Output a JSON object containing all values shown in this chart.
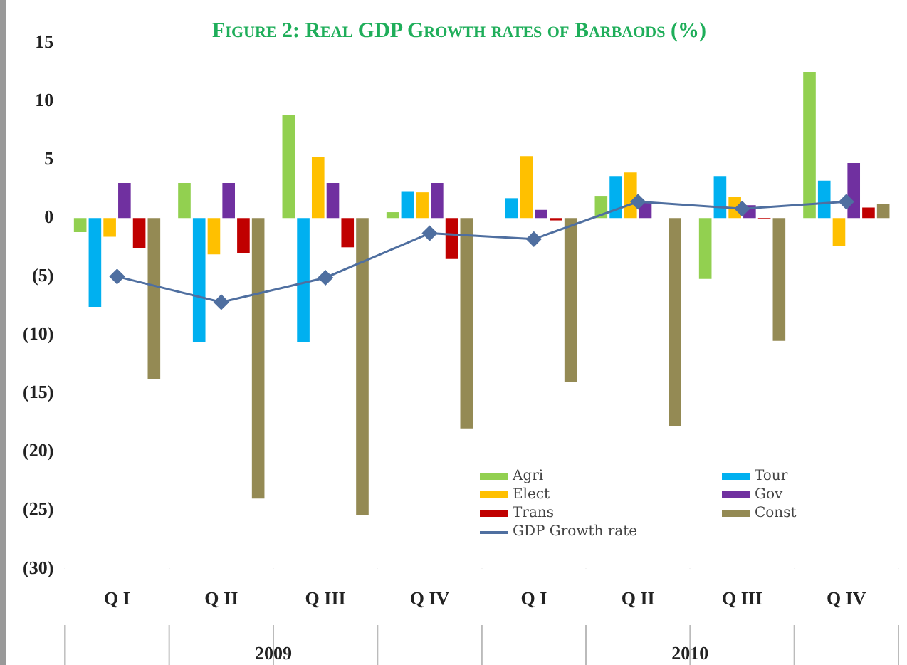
{
  "chart_data": {
    "type": "bar",
    "title": "Figure 2: Real GDP Growth rates of Barbaods (%)",
    "categories": [
      "Q I",
      "Q II",
      "Q III",
      "Q IV",
      "Q I",
      "Q II",
      "Q III",
      "Q IV"
    ],
    "series": [
      {
        "name": "Agri",
        "color": "#92d050",
        "values": [
          -1.2,
          3.0,
          8.8,
          0.5,
          0,
          1.9,
          -5.2,
          12.5
        ]
      },
      {
        "name": "Tour",
        "color": "#00b0f0",
        "values": [
          -7.6,
          -10.6,
          -10.6,
          2.3,
          1.7,
          3.6,
          3.6,
          3.2
        ]
      },
      {
        "name": "Elect",
        "color": "#ffc000",
        "values": [
          -1.6,
          -3.1,
          5.2,
          2.2,
          5.3,
          3.9,
          1.8,
          -2.4
        ]
      },
      {
        "name": "Gov",
        "color": "#7030a0",
        "values": [
          3.0,
          3.0,
          3.0,
          3.0,
          0.7,
          1.3,
          1.1,
          4.7
        ]
      },
      {
        "name": "Trans",
        "color": "#c00000",
        "values": [
          -2.6,
          -3.0,
          -2.5,
          -3.5,
          -0.2,
          0,
          -0.1,
          0.9
        ]
      },
      {
        "name": "Const",
        "color": "#948a54",
        "values": [
          -13.8,
          -24.0,
          -25.4,
          -18.0,
          -14.0,
          -17.8,
          -10.5,
          1.2
        ]
      },
      {
        "name": "GDP Growth rate",
        "type": "line",
        "color": "#4f6fa0",
        "marker": "diamond",
        "values": [
          -5.0,
          -7.2,
          -5.1,
          -1.3,
          -1.8,
          1.4,
          0.8,
          1.4
        ]
      }
    ],
    "ylim": [
      -30,
      15
    ],
    "yticks": [
      {
        "value": -30,
        "label": "(30)"
      },
      {
        "value": -25,
        "label": "(25)"
      },
      {
        "value": -20,
        "label": "(20)"
      },
      {
        "value": -15,
        "label": "(15)"
      },
      {
        "value": -10,
        "label": "(10)"
      },
      {
        "value": -5,
        "label": "(5)"
      },
      0,
      5,
      10,
      15
    ],
    "annotations": [
      "2009",
      "2010"
    ],
    "grid": false,
    "legend": "bottom right"
  }
}
